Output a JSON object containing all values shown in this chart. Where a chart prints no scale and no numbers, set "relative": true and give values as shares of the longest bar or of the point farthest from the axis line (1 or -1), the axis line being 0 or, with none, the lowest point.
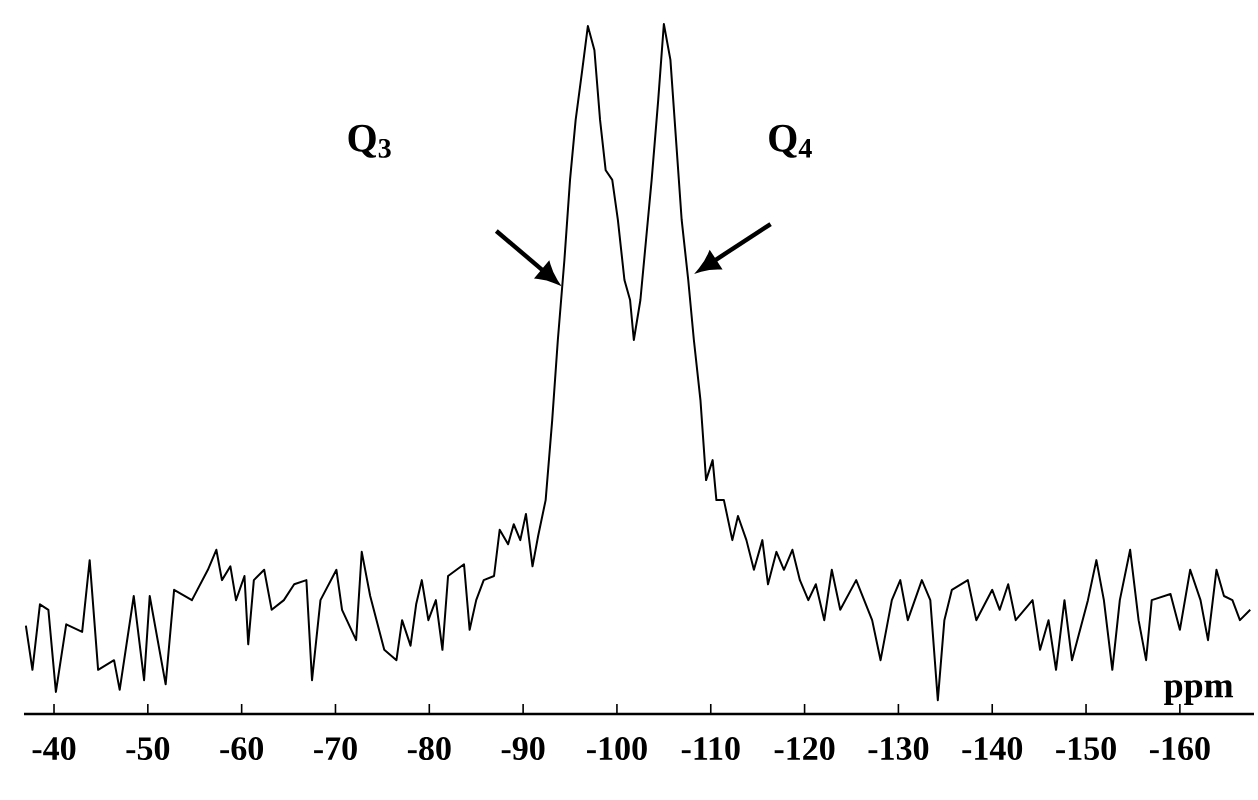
{
  "chart_data": {
    "type": "line",
    "relative": true,
    "xlabel": "ppm",
    "xlim": [
      -36.8,
      -167.9
    ],
    "xticks": [
      -40,
      -50,
      -60,
      -70,
      -80,
      -90,
      -100,
      -110,
      -120,
      -130,
      -140,
      -150,
      -160
    ],
    "color": "#000000",
    "marker": "none",
    "line_style": "solid",
    "annotations": [
      "Q$_{3}$",
      "Q$_{4}$"
    ],
    "x": [
      -37.0,
      -37.7,
      -38.5,
      -39.4,
      -40.2,
      -41.3,
      -43.0,
      -43.8,
      -44.7,
      -46.4,
      -47.0,
      -48.5,
      -49.6,
      -50.2,
      -51.9,
      -52.8,
      -54.7,
      -56.4,
      -57.3,
      -57.9,
      -58.8,
      -59.4,
      -60.3,
      -60.7,
      -61.3,
      -62.4,
      -63.2,
      -64.5,
      -65.6,
      -66.9,
      -67.5,
      -68.4,
      -70.1,
      -70.7,
      -72.2,
      -72.8,
      -73.7,
      -75.2,
      -76.5,
      -77.1,
      -78.0,
      -78.6,
      -79.2,
      -79.9,
      -80.7,
      -81.4,
      -82.0,
      -83.7,
      -84.3,
      -85.0,
      -85.8,
      -86.9,
      -87.5,
      -88.4,
      -89.0,
      -89.7,
      -90.3,
      -91.0,
      -91.6,
      -92.4,
      -93.1,
      -93.7,
      -94.4,
      -95.0,
      -95.6,
      -96.3,
      -96.9,
      -97.6,
      -98.2,
      -98.8,
      -99.5,
      -100.1,
      -100.8,
      -101.4,
      -101.8,
      -102.5,
      -103.1,
      -103.7,
      -104.4,
      -105.0,
      -105.7,
      -106.3,
      -106.9,
      -107.6,
      -108.2,
      -108.9,
      -109.5,
      -110.2,
      -110.6,
      -111.4,
      -112.3,
      -112.9,
      -113.8,
      -114.6,
      -115.5,
      -116.1,
      -117.0,
      -117.8,
      -118.7,
      -119.5,
      -120.4,
      -121.2,
      -122.1,
      -122.9,
      -123.8,
      -125.5,
      -127.2,
      -128.1,
      -129.3,
      -130.2,
      -131.0,
      -132.5,
      -133.4,
      -134.2,
      -134.9,
      -135.7,
      -137.4,
      -138.3,
      -140.0,
      -140.8,
      -141.7,
      -142.5,
      -144.3,
      -145.1,
      -146.0,
      -146.8,
      -147.7,
      -148.5,
      -150.2,
      -151.1,
      -151.9,
      -152.8,
      -153.6,
      -154.7,
      -155.6,
      -156.4,
      -157.0,
      -159.0,
      -160.0,
      -161.1,
      -162.2,
      -163.0,
      -163.9,
      -164.7,
      -165.6,
      -166.4,
      -167.5
    ],
    "values": [
      0.128,
      0.064,
      0.159,
      0.151,
      0.032,
      0.13,
      0.119,
      0.223,
      0.064,
      0.078,
      0.035,
      0.171,
      0.049,
      0.171,
      0.043,
      0.18,
      0.165,
      0.209,
      0.238,
      0.194,
      0.214,
      0.165,
      0.2,
      0.101,
      0.194,
      0.209,
      0.151,
      0.165,
      0.188,
      0.194,
      0.049,
      0.165,
      0.209,
      0.151,
      0.107,
      0.235,
      0.171,
      0.093,
      0.078,
      0.136,
      0.099,
      0.159,
      0.194,
      0.136,
      0.165,
      0.093,
      0.2,
      0.217,
      0.122,
      0.165,
      0.194,
      0.2,
      0.267,
      0.246,
      0.275,
      0.252,
      0.29,
      0.214,
      0.258,
      0.31,
      0.426,
      0.542,
      0.658,
      0.774,
      0.861,
      0.933,
      0.997,
      0.962,
      0.861,
      0.788,
      0.774,
      0.716,
      0.629,
      0.6,
      0.542,
      0.6,
      0.687,
      0.774,
      0.89,
      1,
      0.948,
      0.832,
      0.716,
      0.629,
      0.542,
      0.455,
      0.339,
      0.368,
      0.31,
      0.31,
      0.252,
      0.287,
      0.252,
      0.209,
      0.252,
      0.188,
      0.235,
      0.209,
      0.238,
      0.194,
      0.165,
      0.188,
      0.136,
      0.209,
      0.151,
      0.194,
      0.136,
      0.078,
      0.165,
      0.194,
      0.136,
      0.194,
      0.165,
      0.02,
      0.136,
      0.18,
      0.194,
      0.136,
      0.18,
      0.151,
      0.188,
      0.136,
      0.165,
      0.093,
      0.136,
      0.064,
      0.165,
      0.078,
      0.165,
      0.223,
      0.165,
      0.064,
      0.165,
      0.238,
      0.136,
      0.078,
      0.165,
      0.174,
      0.122,
      0.209,
      0.165,
      0.107,
      0.209,
      0.171,
      0.165,
      0.136,
      0.151
    ]
  }
}
